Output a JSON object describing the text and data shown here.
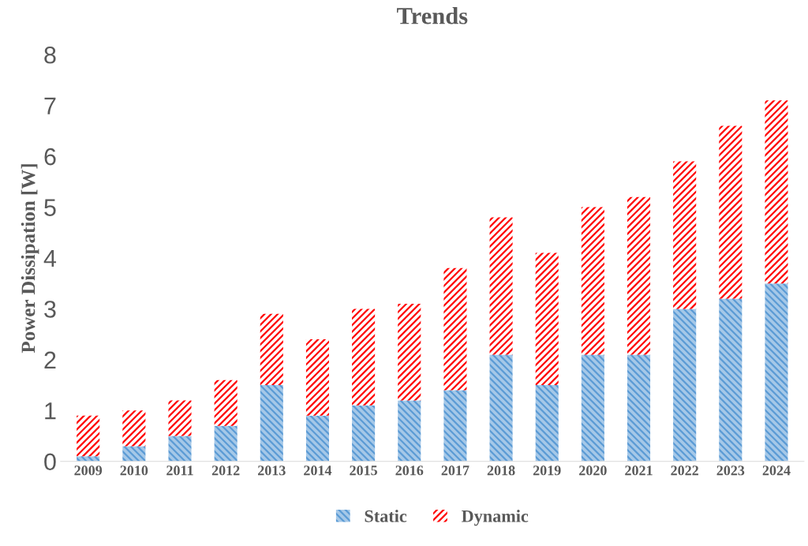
{
  "chart_data": {
    "type": "bar",
    "title": "Trends",
    "ylabel": "Power Dissipation [W]",
    "stacked": true,
    "legend": "bottom",
    "grid": false,
    "categories": [
      "2009",
      "2010",
      "2011",
      "2012",
      "2013",
      "2014",
      "2015",
      "2016",
      "2017",
      "2018",
      "2019",
      "2020",
      "2021",
      "2022",
      "2023",
      "2024"
    ],
    "ylim": [
      0,
      8
    ],
    "yticks": [
      0,
      1,
      2,
      3,
      4,
      5,
      6,
      7,
      8
    ],
    "series": [
      {
        "name": "Static",
        "color": "#5b9bd5",
        "values": [
          0.1,
          0.3,
          0.5,
          0.7,
          1.5,
          0.9,
          1.1,
          1.2,
          1.4,
          2.1,
          1.5,
          2.1,
          2.1,
          3.0,
          3.2,
          3.5
        ]
      },
      {
        "name": "Dynamic",
        "color": "#ff0000",
        "values": [
          0.8,
          0.7,
          0.7,
          0.9,
          1.4,
          1.5,
          1.9,
          1.9,
          2.4,
          2.7,
          2.6,
          2.9,
          3.1,
          2.9,
          3.4,
          3.6
        ]
      }
    ]
  }
}
